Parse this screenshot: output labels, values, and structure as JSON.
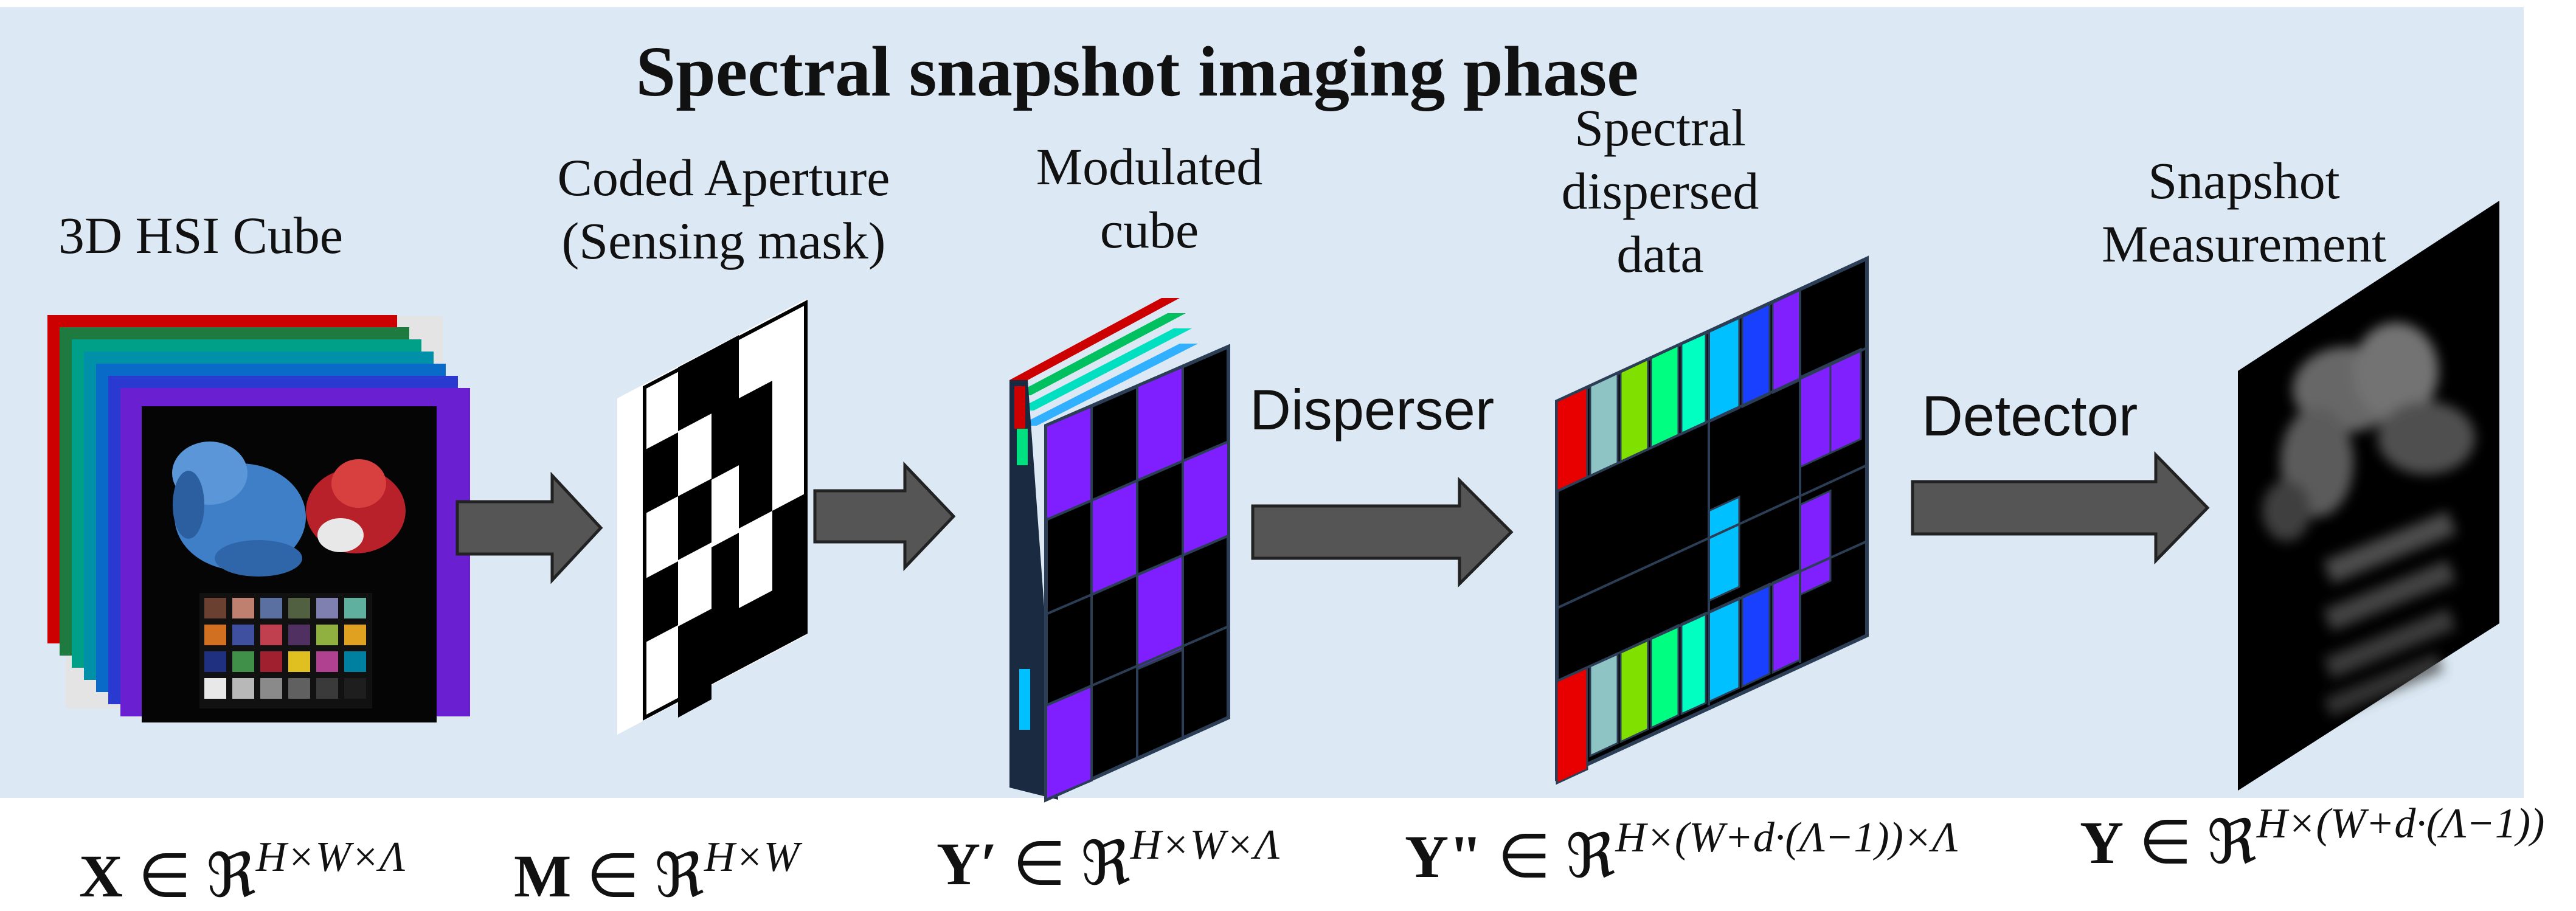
{
  "title": "Spectral snapshot imaging phase",
  "labels": {
    "hsi_cube": "3D HSI Cube",
    "coded_aperture_line1": "Coded Aperture",
    "coded_aperture_line2": "(Sensing mask)",
    "modulated_line1": "Modulated",
    "modulated_line2": "cube",
    "dispersed_line1": "Spectral",
    "dispersed_line2": "dispersed",
    "dispersed_line3": "data",
    "snapshot_line1": "Snapshot",
    "snapshot_line2": "Measurement"
  },
  "operations": {
    "disperser": "Disperser",
    "detector": "Detector"
  },
  "equations": {
    "x": {
      "var": "X",
      "rel": " ∈ ℜ",
      "dims": "H×W×Λ"
    },
    "m": {
      "var": "M",
      "rel": " ∈ ℜ",
      "dims": "H×W"
    },
    "y_prime": {
      "var": "Y′",
      "rel": " ∈ ℜ",
      "dims": "H×W×Λ"
    },
    "y_dprime": {
      "var": "Y\"",
      "rel": " ∈ ℜ",
      "dims": "H×(W+d·(Λ−1))×Λ"
    },
    "y": {
      "var": "Y",
      "rel": " ∈ ℜ",
      "dims": "H×(W+d·(Λ−1))"
    }
  },
  "colors": {
    "panel_background": "#dce9f4",
    "arrow_fill": "#555555",
    "purple_cell": "#7f1fff",
    "band_colors": [
      "#d40000",
      "#00a060",
      "#0090a0",
      "#0060c0",
      "#2a3fd0",
      "#6a1fd0"
    ],
    "dispersed_band_colors": [
      "#e80000",
      "#8fc4c4",
      "#80e000",
      "#00ff80",
      "#00ffc0",
      "#00c0ff",
      "#1a40ff",
      "#8020ff",
      "#8020ff"
    ]
  }
}
